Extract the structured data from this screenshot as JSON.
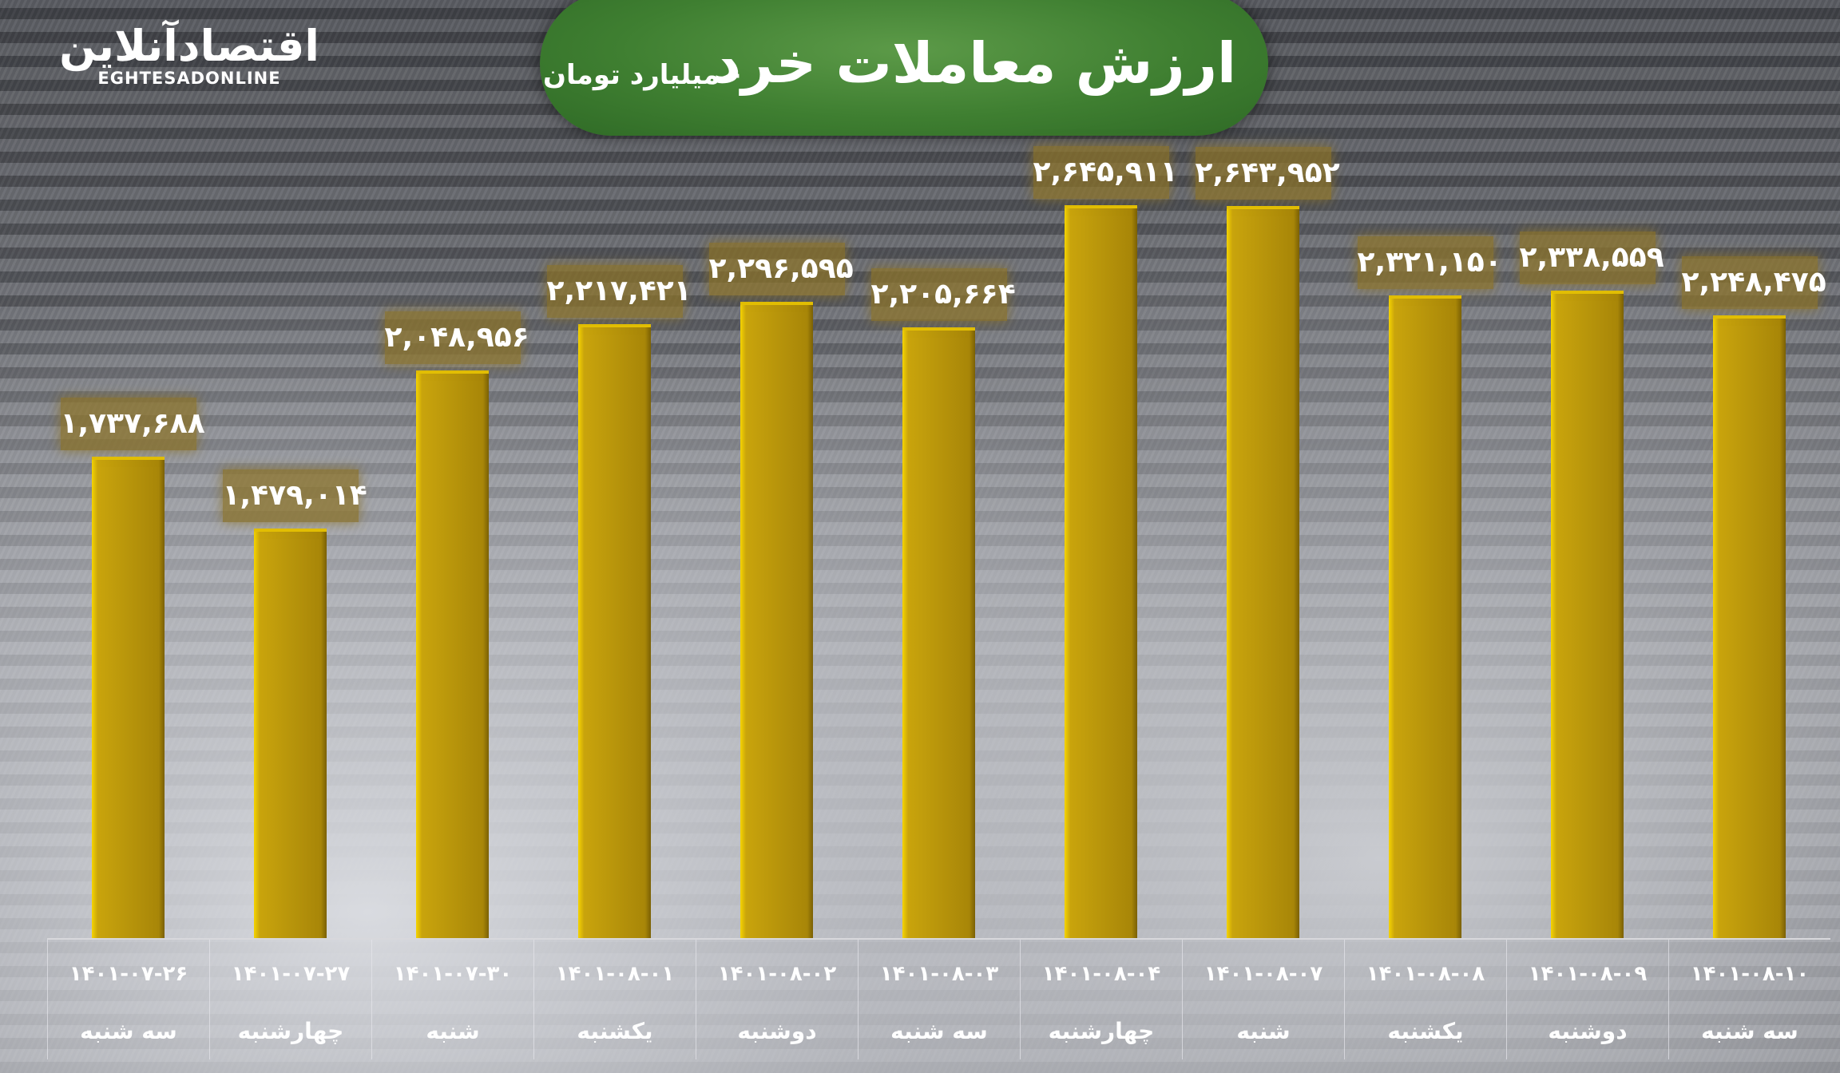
{
  "logo": {
    "fa": "اقتصادآنلاین",
    "en": "EGHTESADONLINE"
  },
  "header": {
    "title": "ارزش معاملات خرد",
    "subtitle": "- میلیارد تومان"
  },
  "colors": {
    "bar": "#c9a40c",
    "title_bg": "#3f7f31",
    "label_bg": "#8c7328"
  },
  "chart_data": {
    "type": "bar",
    "title": "ارزش معاملات خرد",
    "ylabel": "میلیارد تومان",
    "ylim": [
      0,
      2645911
    ],
    "grid": false,
    "categories": [
      "۱۴۰۱-۰۷-۲۶",
      "۱۴۰۱-۰۷-۲۷",
      "۱۴۰۱-۰۷-۳۰",
      "۱۴۰۱-۰۸-۰۱",
      "۱۴۰۱-۰۸-۰۲",
      "۱۴۰۱-۰۸-۰۳",
      "۱۴۰۱-۰۸-۰۴",
      "۱۴۰۱-۰۸-۰۷",
      "۱۴۰۱-۰۸-۰۸",
      "۱۴۰۱-۰۸-۰۹",
      "۱۴۰۱-۰۸-۱۰"
    ],
    "weekdays": [
      "سه شنبه",
      "چهارشنبه",
      "شنبه",
      "یکشنبه",
      "دوشنبه",
      "سه شنبه",
      "چهارشنبه",
      "شنبه",
      "یکشنبه",
      "دوشنبه",
      "سه شنبه"
    ],
    "values": [
      1737688,
      1479014,
      2048956,
      2217421,
      2296595,
      2205664,
      2645911,
      2643952,
      2321150,
      2338559,
      2248475
    ],
    "value_labels": [
      "۱,۷۳۷,۶۸۸",
      "۱,۴۷۹,۰۱۴",
      "۲,۰۴۸,۹۵۶",
      "۲,۲۱۷,۴۲۱",
      "۲,۲۹۶,۵۹۵",
      "۲,۲۰۵,۶۶۴",
      "۲,۶۴۵,۹۱۱",
      "۲,۶۴۳,۹۵۲",
      "۲,۳۲۱,۱۵۰",
      "۲,۳۳۸,۵۵۹",
      "۲,۲۴۸,۴۷۵"
    ]
  }
}
